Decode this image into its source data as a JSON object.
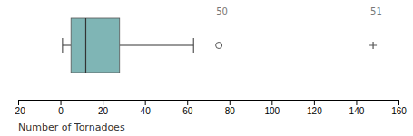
{
  "chart_data": {
    "type": "box",
    "xlabel": "Number of Tornadoes",
    "q1": 5,
    "median": 12,
    "q3": 28,
    "whisker_low": 1,
    "whisker_high": 63,
    "outliers": [
      {
        "value": 75,
        "marker": "circle",
        "label": "50"
      },
      {
        "value": 148,
        "marker": "plus",
        "label": "51"
      }
    ],
    "color": "#7fb5b5",
    "xlim": [
      -20,
      160
    ],
    "xticks": [
      -20,
      0,
      20,
      40,
      60,
      80,
      100,
      120,
      140,
      160
    ],
    "tick_labels": "x",
    "grid": false
  }
}
